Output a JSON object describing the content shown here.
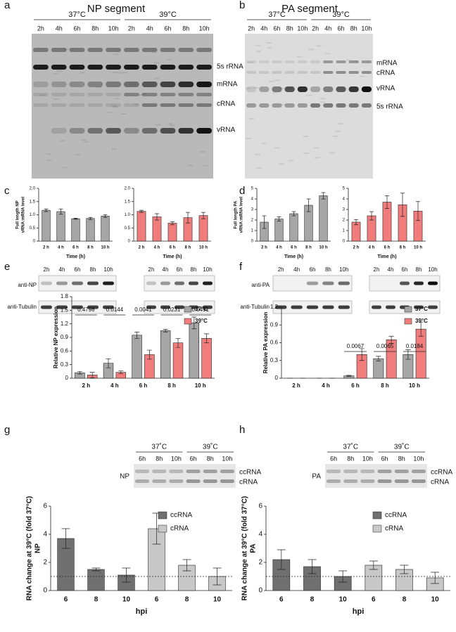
{
  "panel_labels": [
    "a",
    "b",
    "c",
    "d",
    "e",
    "f",
    "g",
    "h"
  ],
  "blots": [
    {
      "title": "NP segment",
      "groups": [
        "37°C",
        "39°C"
      ],
      "lanes": [
        "2h",
        "4h",
        "6h",
        "8h",
        "10h",
        "2h",
        "4h",
        "6h",
        "8h",
        "10h"
      ],
      "bands": [
        "5s rRNA",
        "mRNA",
        "cRNA",
        "vRNA"
      ]
    },
    {
      "title": "PA segment",
      "groups": [
        "37°C",
        "39°C"
      ],
      "lanes": [
        "2h",
        "4h",
        "6h",
        "8h",
        "10h",
        "2h",
        "4h",
        "6h",
        "8h",
        "10h"
      ],
      "bands": [
        "mRNA",
        "cRNA",
        "vRNA",
        "5s rRNA"
      ]
    },
    {
      "lanes": [
        "2h",
        "4h",
        "6h",
        "8h",
        "10h",
        "2h",
        "4h",
        "6h",
        "8h",
        "10h"
      ],
      "rows": [
        "anti-NP",
        "anti-Tubulin"
      ]
    },
    {
      "lanes": [
        "2h",
        "4h",
        "6h",
        "8h",
        "10h",
        "2h",
        "4h",
        "6h",
        "8h",
        "10h"
      ],
      "rows": [
        "anti-PA",
        "anti-Tubulin"
      ]
    },
    {
      "groups": [
        "37˚C",
        "39˚C"
      ],
      "lanes": [
        "6h",
        "8h",
        "10h",
        "6h",
        "8h",
        "10h"
      ],
      "name": "NP",
      "bands": [
        "ccRNA",
        "cRNA"
      ]
    },
    {
      "groups": [
        "37˚C",
        "39˚C"
      ],
      "lanes": [
        "6h",
        "8h",
        "10h",
        "6h",
        "8h",
        "10h"
      ],
      "name": "PA",
      "bands": [
        "ccRNA",
        "cRNA"
      ]
    }
  ],
  "chart_data": [
    {
      "type": "bar",
      "categories": [
        "2 h",
        "4 h",
        "6 h",
        "8 h",
        "10 h"
      ],
      "values": [
        1.17,
        1.12,
        0.85,
        0.86,
        0.95
      ],
      "errors": [
        0.05,
        0.1,
        0.02,
        0.04,
        0.05
      ],
      "color": "#a6a6a6",
      "ylim": [
        0,
        2
      ],
      "yticks": [
        0,
        0.5,
        {
          "value": 1,
          "label": "1.0"
        },
        1.5,
        {
          "value": 2,
          "label": "2.0"
        }
      ],
      "ylabel": [
        "Full length NP",
        "vRNA:mRNA level"
      ],
      "xlabel": "Time (h)"
    },
    {
      "type": "bar",
      "categories": [
        "2 h",
        "4 h",
        "6 h",
        "8 h",
        "10 h"
      ],
      "values": [
        1.13,
        0.92,
        0.68,
        0.89,
        0.97
      ],
      "errors": [
        0.04,
        0.12,
        0.06,
        0.2,
        0.12
      ],
      "color": "#f07c7c",
      "ylim": [
        0,
        2
      ],
      "yticks": [
        0,
        0.5,
        {
          "value": 1,
          "label": "1.0"
        },
        1.5,
        {
          "value": 2,
          "label": "2.0"
        }
      ],
      "xlabel": "Time (h)"
    },
    {
      "type": "bar",
      "categories": [
        "2 h",
        "4 h",
        "6 h",
        "8 h",
        "10 h"
      ],
      "values": [
        1.8,
        2.1,
        2.6,
        3.4,
        4.3
      ],
      "errors": [
        0.6,
        0.2,
        0.2,
        0.6,
        0.3
      ],
      "color": "#a6a6a6",
      "ylim": [
        0,
        5
      ],
      "yticks": [
        0,
        1,
        2,
        3,
        4,
        5
      ],
      "ylabel": [
        "Full length PA",
        "vRNA:mRNA level"
      ],
      "xlabel": "Time (h)"
    },
    {
      "type": "bar",
      "categories": [
        "2 h",
        "4 h",
        "6 h",
        "8 h",
        "10 h"
      ],
      "values": [
        1.8,
        2.4,
        3.7,
        3.45,
        2.85
      ],
      "errors": [
        0.25,
        0.4,
        0.6,
        1.1,
        0.9
      ],
      "color": "#f07c7c",
      "ylim": [
        0,
        5
      ],
      "yticks": [
        0,
        1,
        2,
        3,
        4,
        5
      ],
      "xlabel": "Time (h)"
    },
    {
      "type": "bar",
      "categories": [
        "2 h",
        "4 h",
        "6 h",
        "8 h",
        "10 h"
      ],
      "series": [
        {
          "name": "37°C",
          "color": "#a6a6a6",
          "values": [
            0.12,
            0.33,
            0.95,
            1.05,
            1.22
          ],
          "errors": [
            0.03,
            0.1,
            0.07,
            0.03,
            0.13
          ]
        },
        {
          "name": "39°C",
          "color": "#f07c7c",
          "values": [
            0.07,
            0.13,
            0.52,
            0.78,
            0.88
          ],
          "errors": [
            0.06,
            0.03,
            0.1,
            0.1,
            0.1
          ]
        }
      ],
      "ylim": [
        0,
        1.8
      ],
      "yticks": [
        0,
        0.3,
        0.6,
        0.9,
        1.2,
        1.5,
        1.8
      ],
      "ylabel": [
        "Relative NP expression"
      ],
      "annotations": [
        "0.4798",
        "0.0144",
        "0.0041",
        "0.0231",
        "0.0491"
      ]
    },
    {
      "type": "bar",
      "categories": [
        "2 h",
        "4 h",
        "6 h",
        "8 h",
        "10 h"
      ],
      "series": [
        {
          "name": "37°C",
          "color": "#a6a6a6",
          "values": [
            0,
            0,
            0.04,
            0.33,
            0.4
          ],
          "errors": [
            0,
            0,
            0.01,
            0.04,
            0.08
          ]
        },
        {
          "name": "39°C",
          "color": "#f07c7c",
          "values": [
            0,
            0,
            0.4,
            0.65,
            0.83
          ],
          "errors": [
            0,
            0,
            0.1,
            0.06,
            0.12
          ]
        }
      ],
      "ylim": [
        0,
        1.2
      ],
      "yticks": [
        0,
        0.3,
        0.6,
        0.9,
        1.2
      ],
      "ylabel": [
        "Relative PA expression"
      ],
      "annotations": [
        null,
        null,
        "0.0067",
        "0.0065",
        "0.0184"
      ]
    },
    {
      "type": "bar",
      "categories": [
        "6",
        "8",
        "10",
        "6",
        "8",
        "10"
      ],
      "series": [
        {
          "name": "ccRNA",
          "color": "#707070",
          "values": [
            3.7,
            1.5,
            1.1,
            null,
            null,
            null
          ],
          "errors": [
            0.7,
            0.1,
            0.5,
            null,
            null,
            null
          ]
        },
        {
          "name": "cRNA",
          "color": "#c8c8c8",
          "values": [
            null,
            null,
            null,
            4.4,
            1.8,
            1.0
          ],
          "errors": [
            null,
            null,
            null,
            1.1,
            0.4,
            0.6
          ]
        }
      ],
      "ylim": [
        0,
        6
      ],
      "yticks": [
        0,
        2,
        4,
        6
      ],
      "ylabel": [
        "RNA change at 39°C (fold 37°C)",
        "NP"
      ],
      "xlabel": "hpi",
      "reference_line": 1
    },
    {
      "type": "bar",
      "categories": [
        "6",
        "8",
        "10",
        "6",
        "8",
        "10"
      ],
      "series": [
        {
          "name": "ccRNA",
          "color": "#707070",
          "values": [
            2.2,
            1.7,
            1.0,
            null,
            null,
            null
          ],
          "errors": [
            0.7,
            0.5,
            0.4,
            null,
            null,
            null
          ]
        },
        {
          "name": "cRNA",
          "color": "#c8c8c8",
          "values": [
            null,
            null,
            null,
            1.8,
            1.5,
            0.9
          ],
          "errors": [
            null,
            null,
            null,
            0.3,
            0.3,
            0.4
          ]
        }
      ],
      "ylim": [
        0,
        6
      ],
      "yticks": [
        0,
        2,
        4,
        6
      ],
      "ylabel": [
        "RNA change at 39°C (fold 37°C)",
        "PA"
      ],
      "xlabel": "hpi",
      "reference_line": 1
    }
  ]
}
